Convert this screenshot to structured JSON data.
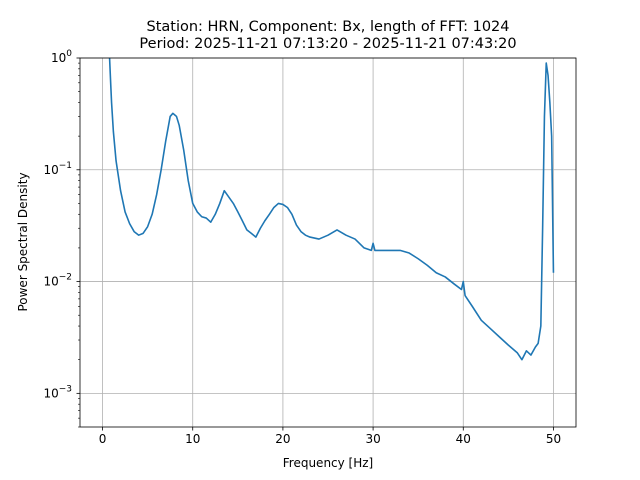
{
  "chart_data": {
    "type": "line",
    "title_line1": "Station: HRN, Component: Bx, length of FFT: 1024",
    "title_line2": "Period: 2025-11-21 07:13:20 - 2025-11-21 07:43:20",
    "xlabel": "Frequency [Hz]",
    "ylabel": "Power Spectral Density",
    "xlim": [
      -2.5,
      52.5
    ],
    "ylim": [
      0.0005,
      1
    ],
    "yscale": "log",
    "grid": true,
    "color": "#1f77b4",
    "x_ticks": [
      0,
      10,
      20,
      30,
      40,
      50
    ],
    "x_tick_labels": [
      "0",
      "10",
      "20",
      "30",
      "40",
      "50"
    ],
    "y_ticks": [
      0.001,
      0.01,
      0.1,
      1
    ],
    "series": [
      {
        "x": [
          0.78,
          0.9,
          1.0,
          1.2,
          1.5,
          2.0,
          2.5,
          3.0,
          3.5,
          4.0,
          4.5,
          5.0,
          5.5,
          6.0,
          6.5,
          7.0,
          7.5,
          7.8,
          8.0,
          8.2,
          8.5,
          9.0,
          9.5,
          10.0,
          10.5,
          11.0,
          11.5,
          12.0,
          12.5,
          13.0,
          13.5,
          14.0,
          14.5,
          15.0,
          15.5,
          16.0,
          16.5,
          17.0,
          17.5,
          18.0,
          18.5,
          19.0,
          19.5,
          20.0,
          20.5,
          21.0,
          21.5,
          22.0,
          22.5,
          23.0,
          24.0,
          25.0,
          26.0,
          27.0,
          28.0,
          29.0,
          29.8,
          30.0,
          30.2,
          31.0,
          32.0,
          33.0,
          34.0,
          35.0,
          36.0,
          37.0,
          38.0,
          39.0,
          39.8,
          40.0,
          40.2,
          41.0,
          42.0,
          43.0,
          44.0,
          45.0,
          46.0,
          46.5,
          47.0,
          47.5,
          48.0,
          48.3,
          48.6,
          48.8,
          49.0,
          49.2,
          49.4,
          49.6,
          49.8,
          50.0
        ],
        "y": [
          1.0,
          0.6,
          0.4,
          0.22,
          0.12,
          0.065,
          0.042,
          0.033,
          0.028,
          0.026,
          0.027,
          0.031,
          0.04,
          0.06,
          0.1,
          0.18,
          0.3,
          0.32,
          0.31,
          0.3,
          0.25,
          0.15,
          0.08,
          0.05,
          0.042,
          0.038,
          0.037,
          0.034,
          0.04,
          0.05,
          0.065,
          0.057,
          0.05,
          0.042,
          0.035,
          0.029,
          0.027,
          0.025,
          0.03,
          0.035,
          0.04,
          0.046,
          0.05,
          0.049,
          0.046,
          0.04,
          0.032,
          0.028,
          0.026,
          0.025,
          0.024,
          0.026,
          0.029,
          0.026,
          0.024,
          0.02,
          0.019,
          0.022,
          0.019,
          0.019,
          0.019,
          0.019,
          0.018,
          0.016,
          0.014,
          0.012,
          0.011,
          0.0095,
          0.0085,
          0.01,
          0.0075,
          0.006,
          0.0045,
          0.0038,
          0.0032,
          0.0027,
          0.0023,
          0.002,
          0.0024,
          0.0022,
          0.0026,
          0.0028,
          0.004,
          0.03,
          0.3,
          0.9,
          0.7,
          0.4,
          0.2,
          0.012
        ]
      }
    ]
  }
}
